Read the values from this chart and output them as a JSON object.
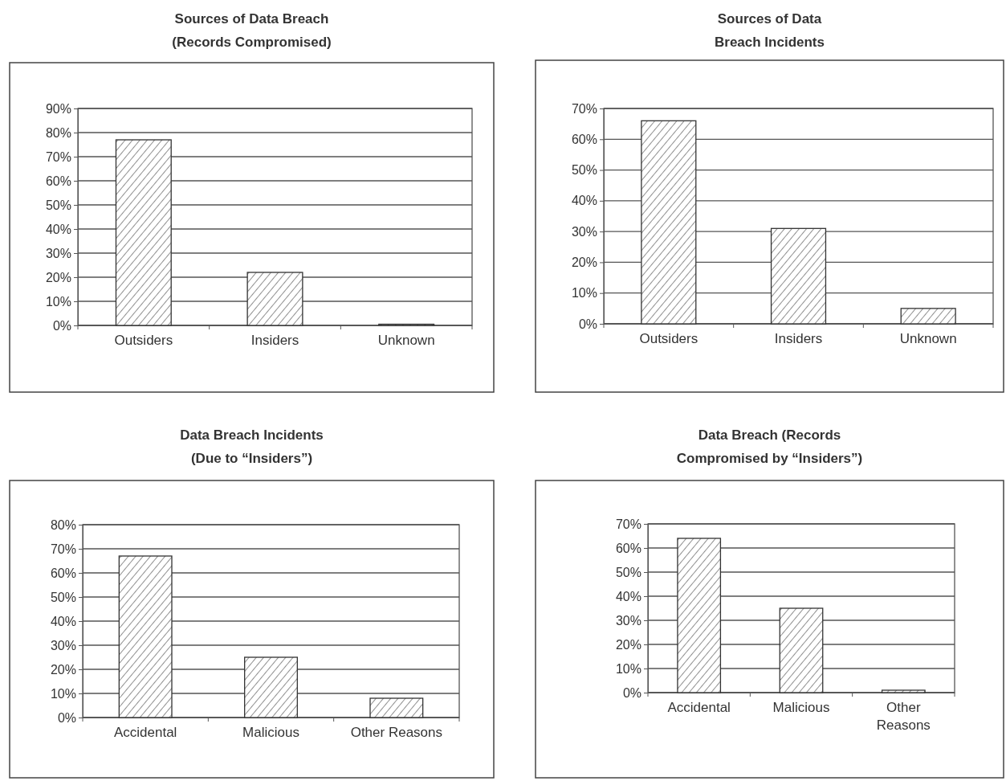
{
  "chart_data": [
    {
      "type": "bar",
      "title": "Sources of Data Breach\n(Records Compromised)",
      "categories": [
        "Outsiders",
        "Insiders",
        "Unknown"
      ],
      "values": [
        77,
        22,
        0.5
      ],
      "color": "#333333",
      "ylim": [
        0,
        90
      ],
      "yticks": [
        {
          "value": 0,
          "label": "0%"
        },
        {
          "value": 10,
          "label": "10%"
        },
        {
          "value": 20,
          "label": "20%"
        },
        {
          "value": 30,
          "label": "30%"
        },
        {
          "value": 40,
          "label": "40%"
        },
        {
          "value": 50,
          "label": "50%"
        },
        {
          "value": 60,
          "label": "60%"
        },
        {
          "value": 70,
          "label": "70%"
        },
        {
          "value": 80,
          "label": "80%"
        },
        {
          "value": 90,
          "label": "90%"
        }
      ],
      "grid": "y"
    },
    {
      "type": "bar",
      "title": "Sources of Data\nBreach Incidents",
      "categories": [
        "Outsiders",
        "Insiders",
        "Unknown"
      ],
      "values": [
        66,
        31,
        5
      ],
      "color": "#333333",
      "ylim": [
        0,
        70
      ],
      "yticks": [
        {
          "value": 0,
          "label": "0%"
        },
        {
          "value": 10,
          "label": "10%"
        },
        {
          "value": 20,
          "label": "20%"
        },
        {
          "value": 30,
          "label": "30%"
        },
        {
          "value": 40,
          "label": "40%"
        },
        {
          "value": 50,
          "label": "50%"
        },
        {
          "value": 60,
          "label": "60%"
        },
        {
          "value": 70,
          "label": "70%"
        }
      ],
      "grid": "y"
    },
    {
      "type": "bar",
      "title": "Data Breach Incidents\n(Due to “Insiders”)",
      "categories": [
        "Accidental",
        "Malicious",
        "Other Reasons"
      ],
      "values": [
        67,
        25,
        8
      ],
      "color": "#333333",
      "ylim": [
        0,
        80
      ],
      "yticks": [
        {
          "value": 0,
          "label": "0%"
        },
        {
          "value": 10,
          "label": "10%"
        },
        {
          "value": 20,
          "label": "20%"
        },
        {
          "value": 30,
          "label": "30%"
        },
        {
          "value": 40,
          "label": "40%"
        },
        {
          "value": 50,
          "label": "50%"
        },
        {
          "value": 60,
          "label": "60%"
        },
        {
          "value": 70,
          "label": "70%"
        },
        {
          "value": 80,
          "label": "80%"
        }
      ],
      "grid": "y"
    },
    {
      "type": "bar",
      "title": "Data Breach (Records\nCompromised by “Insiders”)",
      "categories": [
        "Accidental",
        "Malicious",
        "Other Reasons"
      ],
      "values": [
        64,
        35,
        1
      ],
      "color": "#333333",
      "ylim": [
        0,
        70
      ],
      "yticks": [
        {
          "value": 0,
          "label": "0%"
        },
        {
          "value": 10,
          "label": "10%"
        },
        {
          "value": 20,
          "label": "20%"
        },
        {
          "value": 30,
          "label": "30%"
        },
        {
          "value": 40,
          "label": "40%"
        },
        {
          "value": 50,
          "label": "50%"
        },
        {
          "value": 60,
          "label": "60%"
        },
        {
          "value": 70,
          "label": "70%"
        }
      ],
      "grid": "y"
    }
  ]
}
